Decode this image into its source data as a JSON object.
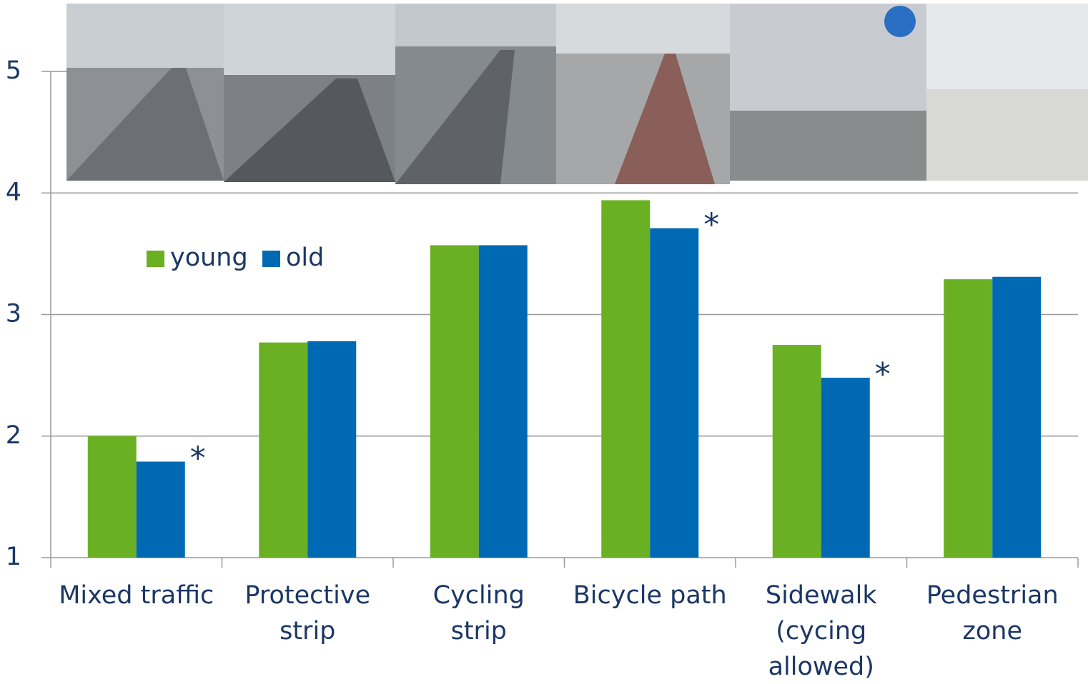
{
  "chart_data": {
    "type": "bar",
    "categories": [
      [
        "Mixed traffic"
      ],
      [
        "Protective",
        "strip"
      ],
      [
        "Cycling",
        "strip"
      ],
      [
        "Bicycle path"
      ],
      [
        "Sidewalk",
        "(cycing",
        "allowed)"
      ],
      [
        "Pedestrian",
        "zone"
      ]
    ],
    "series": [
      {
        "name": "young",
        "color": "#6ab023",
        "values": [
          2.0,
          2.77,
          3.57,
          3.94,
          2.75,
          3.29
        ]
      },
      {
        "name": "old",
        "color": "#0069b4",
        "values": [
          1.79,
          2.78,
          3.57,
          3.71,
          2.48,
          3.31
        ]
      }
    ],
    "significance": [
      "*",
      null,
      null,
      "*",
      "*",
      null
    ],
    "ylim": [
      1,
      5
    ],
    "yticks": [
      1,
      2,
      3,
      4,
      5
    ],
    "grid": true
  }
}
